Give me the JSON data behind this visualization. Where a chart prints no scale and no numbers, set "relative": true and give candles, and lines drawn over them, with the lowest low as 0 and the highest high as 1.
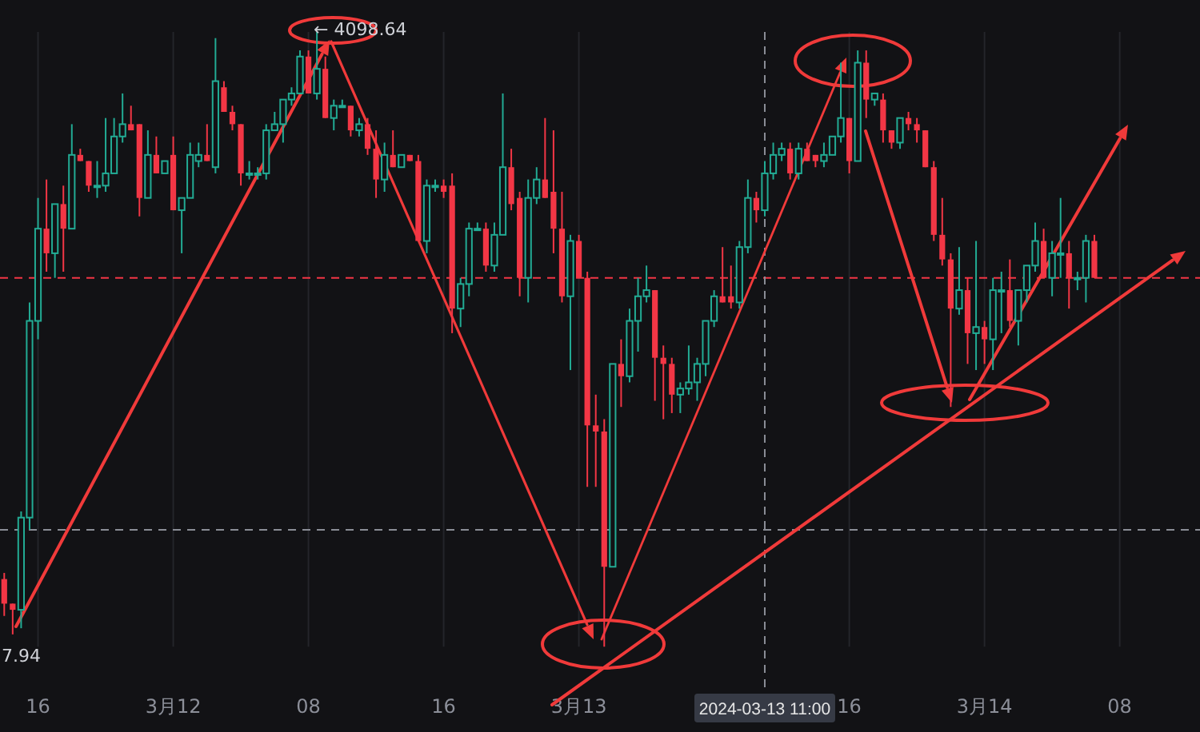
{
  "chart_data": {
    "type": "candlestick",
    "relative": true,
    "grid": "x",
    "xlim": [
      "2024-03-11T13:45",
      "2024-03-14T12:45"
    ],
    "xticks": [
      {
        "value": "2024-03-11T16:00",
        "label": "16"
      },
      {
        "value": "2024-03-12T00:00",
        "label": "3月12"
      },
      {
        "value": "2024-03-12T08:00",
        "label": "08"
      },
      {
        "value": "2024-03-12T16:00",
        "label": "16"
      },
      {
        "value": "2024-03-13T00:00",
        "label": "3月13"
      },
      {
        "value": "2024-03-13T16:00",
        "label": "16"
      },
      {
        "value": "2024-03-14T00:00",
        "label": "3月14"
      },
      {
        "value": "2024-03-14T08:00",
        "label": "08"
      }
    ],
    "x": [
      "2024-03-11T14:00",
      "2024-03-11T14:30",
      "2024-03-11T15:00",
      "2024-03-11T15:30",
      "2024-03-11T16:00",
      "2024-03-11T16:30",
      "2024-03-11T17:00",
      "2024-03-11T17:30",
      "2024-03-11T18:00",
      "2024-03-11T18:30",
      "2024-03-11T19:00",
      "2024-03-11T19:30",
      "2024-03-11T20:00",
      "2024-03-11T20:30",
      "2024-03-11T21:00",
      "2024-03-11T21:30",
      "2024-03-11T22:00",
      "2024-03-11T22:30",
      "2024-03-11T23:00",
      "2024-03-11T23:30",
      "2024-03-12T00:00",
      "2024-03-12T00:30",
      "2024-03-12T01:00",
      "2024-03-12T01:30",
      "2024-03-12T02:00",
      "2024-03-12T02:30",
      "2024-03-12T03:00",
      "2024-03-12T03:30",
      "2024-03-12T04:00",
      "2024-03-12T04:30",
      "2024-03-12T05:00",
      "2024-03-12T05:30",
      "2024-03-12T06:00",
      "2024-03-12T06:30",
      "2024-03-12T07:00",
      "2024-03-12T07:30",
      "2024-03-12T08:00",
      "2024-03-12T08:30",
      "2024-03-12T09:00",
      "2024-03-12T09:30",
      "2024-03-12T10:00",
      "2024-03-12T10:30",
      "2024-03-12T11:00",
      "2024-03-12T11:30",
      "2024-03-12T12:00",
      "2024-03-12T12:30",
      "2024-03-12T13:00",
      "2024-03-12T13:30",
      "2024-03-12T14:00",
      "2024-03-12T14:30",
      "2024-03-12T15:00",
      "2024-03-12T15:30",
      "2024-03-12T16:00",
      "2024-03-12T16:30",
      "2024-03-12T17:00",
      "2024-03-12T17:30",
      "2024-03-12T18:00",
      "2024-03-12T18:30",
      "2024-03-12T19:00",
      "2024-03-12T19:30",
      "2024-03-12T20:00",
      "2024-03-12T20:30",
      "2024-03-12T21:00",
      "2024-03-12T21:30",
      "2024-03-12T22:00",
      "2024-03-12T22:30",
      "2024-03-12T23:00",
      "2024-03-12T23:30",
      "2024-03-13T00:00",
      "2024-03-13T00:30",
      "2024-03-13T01:00",
      "2024-03-13T01:30",
      "2024-03-13T02:00",
      "2024-03-13T02:30",
      "2024-03-13T03:00",
      "2024-03-13T03:30",
      "2024-03-13T04:00",
      "2024-03-13T04:30",
      "2024-03-13T05:00",
      "2024-03-13T05:30",
      "2024-03-13T06:00",
      "2024-03-13T06:30",
      "2024-03-13T07:00",
      "2024-03-13T07:30",
      "2024-03-13T08:00",
      "2024-03-13T08:30",
      "2024-03-13T09:00",
      "2024-03-13T09:30",
      "2024-03-13T10:00",
      "2024-03-13T10:30",
      "2024-03-13T11:00",
      "2024-03-13T11:30",
      "2024-03-13T12:00",
      "2024-03-13T12:30",
      "2024-03-13T13:00",
      "2024-03-13T13:30",
      "2024-03-13T14:00",
      "2024-03-13T14:30",
      "2024-03-13T15:00",
      "2024-03-13T15:30",
      "2024-03-13T16:00",
      "2024-03-13T16:30",
      "2024-03-13T17:00",
      "2024-03-13T17:30",
      "2024-03-13T18:00",
      "2024-03-13T18:30",
      "2024-03-13T19:00",
      "2024-03-13T19:30",
      "2024-03-13T20:00",
      "2024-03-13T20:30",
      "2024-03-13T21:00",
      "2024-03-13T21:30",
      "2024-03-13T22:00",
      "2024-03-13T22:30",
      "2024-03-13T23:00",
      "2024-03-13T23:30",
      "2024-03-14T00:00",
      "2024-03-14T00:30",
      "2024-03-14T01:00",
      "2024-03-14T01:30",
      "2024-03-14T02:00",
      "2024-03-14T02:30",
      "2024-03-14T03:00",
      "2024-03-14T03:30",
      "2024-03-14T04:00",
      "2024-03-14T04:30",
      "2024-03-14T05:00",
      "2024-03-14T05:30",
      "2024-03-14T06:00",
      "2024-03-14T06:30"
    ],
    "ohlc": [
      [
        0.11,
        0.12,
        0.05,
        0.07
      ],
      [
        0.07,
        0.07,
        0.02,
        0.06
      ],
      [
        0.06,
        0.22,
        0.03,
        0.21
      ],
      [
        0.21,
        0.56,
        0.19,
        0.53
      ],
      [
        0.53,
        0.73,
        0.5,
        0.68
      ],
      [
        0.68,
        0.76,
        0.61,
        0.64
      ],
      [
        0.64,
        0.72,
        0.6,
        0.72
      ],
      [
        0.72,
        0.75,
        0.61,
        0.68
      ],
      [
        0.68,
        0.85,
        0.68,
        0.8
      ],
      [
        0.8,
        0.81,
        0.79,
        0.79
      ],
      [
        0.79,
        0.79,
        0.74,
        0.75
      ],
      [
        0.75,
        0.79,
        0.73,
        0.75
      ],
      [
        0.75,
        0.86,
        0.74,
        0.77
      ],
      [
        0.77,
        0.86,
        0.77,
        0.83
      ],
      [
        0.83,
        0.9,
        0.82,
        0.85
      ],
      [
        0.85,
        0.88,
        0.84,
        0.84
      ],
      [
        0.85,
        0.85,
        0.7,
        0.73
      ],
      [
        0.73,
        0.84,
        0.73,
        0.8
      ],
      [
        0.8,
        0.83,
        0.77,
        0.77
      ],
      [
        0.77,
        0.79,
        0.77,
        0.79
      ],
      [
        0.8,
        0.83,
        0.71,
        0.71
      ],
      [
        0.71,
        0.73,
        0.64,
        0.73
      ],
      [
        0.73,
        0.82,
        0.73,
        0.8
      ],
      [
        0.79,
        0.82,
        0.78,
        0.8
      ],
      [
        0.8,
        0.85,
        0.79,
        0.79
      ],
      [
        0.78,
        0.99,
        0.77,
        0.92
      ],
      [
        0.91,
        0.92,
        0.87,
        0.87
      ],
      [
        0.87,
        0.88,
        0.84,
        0.85
      ],
      [
        0.85,
        0.85,
        0.75,
        0.77
      ],
      [
        0.77,
        0.79,
        0.76,
        0.77
      ],
      [
        0.77,
        0.78,
        0.76,
        0.77
      ],
      [
        0.77,
        0.85,
        0.76,
        0.84
      ],
      [
        0.84,
        0.87,
        0.84,
        0.85
      ],
      [
        0.85,
        0.89,
        0.82,
        0.89
      ],
      [
        0.89,
        0.91,
        0.88,
        0.9
      ],
      [
        0.9,
        0.97,
        0.9,
        0.96
      ],
      [
        0.96,
        0.97,
        0.9,
        0.9
      ],
      [
        0.9,
        1.0,
        0.89,
        0.94
      ],
      [
        0.94,
        0.96,
        0.86,
        0.86
      ],
      [
        0.86,
        0.89,
        0.84,
        0.88
      ],
      [
        0.88,
        0.89,
        0.88,
        0.88
      ],
      [
        0.88,
        0.88,
        0.83,
        0.84
      ],
      [
        0.84,
        0.86,
        0.83,
        0.85
      ],
      [
        0.85,
        0.86,
        0.8,
        0.81
      ],
      [
        0.81,
        0.84,
        0.73,
        0.76
      ],
      [
        0.76,
        0.82,
        0.74,
        0.8
      ],
      [
        0.8,
        0.84,
        0.78,
        0.78
      ],
      [
        0.78,
        0.8,
        0.78,
        0.8
      ],
      [
        0.8,
        0.8,
        0.79,
        0.79
      ],
      [
        0.79,
        0.8,
        0.66,
        0.66
      ],
      [
        0.66,
        0.76,
        0.64,
        0.75
      ],
      [
        0.75,
        0.76,
        0.74,
        0.75
      ],
      [
        0.75,
        0.76,
        0.73,
        0.74
      ],
      [
        0.75,
        0.77,
        0.51,
        0.55
      ],
      [
        0.55,
        0.6,
        0.52,
        0.59
      ],
      [
        0.59,
        0.69,
        0.57,
        0.68
      ],
      [
        0.68,
        0.69,
        0.68,
        0.68
      ],
      [
        0.68,
        0.69,
        0.61,
        0.62
      ],
      [
        0.62,
        0.69,
        0.61,
        0.67
      ],
      [
        0.67,
        0.9,
        0.67,
        0.78
      ],
      [
        0.78,
        0.81,
        0.71,
        0.72
      ],
      [
        0.73,
        0.74,
        0.57,
        0.6
      ],
      [
        0.6,
        0.76,
        0.56,
        0.73
      ],
      [
        0.73,
        0.78,
        0.72,
        0.76
      ],
      [
        0.76,
        0.86,
        0.73,
        0.73
      ],
      [
        0.74,
        0.84,
        0.64,
        0.68
      ],
      [
        0.68,
        0.74,
        0.56,
        0.57
      ],
      [
        0.57,
        0.67,
        0.45,
        0.66
      ],
      [
        0.66,
        0.67,
        0.6,
        0.6
      ],
      [
        0.6,
        0.61,
        0.26,
        0.36
      ],
      [
        0.36,
        0.41,
        0.26,
        0.35
      ],
      [
        0.35,
        0.37,
        0.0,
        0.13
      ],
      [
        0.13,
        0.46,
        0.13,
        0.46
      ],
      [
        0.46,
        0.5,
        0.39,
        0.44
      ],
      [
        0.44,
        0.55,
        0.43,
        0.53
      ],
      [
        0.53,
        0.6,
        0.48,
        0.57
      ],
      [
        0.57,
        0.62,
        0.56,
        0.58
      ],
      [
        0.58,
        0.58,
        0.4,
        0.47
      ],
      [
        0.47,
        0.49,
        0.37,
        0.46
      ],
      [
        0.46,
        0.47,
        0.38,
        0.41
      ],
      [
        0.41,
        0.43,
        0.38,
        0.42
      ],
      [
        0.42,
        0.49,
        0.41,
        0.43
      ],
      [
        0.43,
        0.47,
        0.4,
        0.46
      ],
      [
        0.46,
        0.53,
        0.44,
        0.53
      ],
      [
        0.53,
        0.58,
        0.52,
        0.57
      ],
      [
        0.57,
        0.65,
        0.56,
        0.56
      ],
      [
        0.57,
        0.62,
        0.55,
        0.56
      ],
      [
        0.56,
        0.66,
        0.55,
        0.65
      ],
      [
        0.65,
        0.76,
        0.64,
        0.73
      ],
      [
        0.73,
        0.74,
        0.69,
        0.71
      ],
      [
        0.71,
        0.79,
        0.7,
        0.77
      ],
      [
        0.77,
        0.82,
        0.76,
        0.8
      ],
      [
        0.8,
        0.82,
        0.79,
        0.81
      ],
      [
        0.81,
        0.82,
        0.76,
        0.77
      ],
      [
        0.77,
        0.82,
        0.76,
        0.81
      ],
      [
        0.81,
        0.82,
        0.79,
        0.79
      ],
      [
        0.8,
        0.8,
        0.78,
        0.79
      ],
      [
        0.79,
        0.82,
        0.78,
        0.8
      ],
      [
        0.8,
        0.83,
        0.8,
        0.83
      ],
      [
        0.83,
        0.95,
        0.82,
        0.86
      ],
      [
        0.86,
        0.86,
        0.77,
        0.79
      ],
      [
        0.79,
        0.97,
        0.79,
        0.95
      ],
      [
        0.95,
        0.97,
        0.86,
        0.89
      ],
      [
        0.89,
        0.9,
        0.88,
        0.9
      ],
      [
        0.89,
        0.9,
        0.82,
        0.84
      ],
      [
        0.84,
        0.84,
        0.81,
        0.82
      ],
      [
        0.82,
        0.86,
        0.81,
        0.86
      ],
      [
        0.86,
        0.87,
        0.84,
        0.85
      ],
      [
        0.85,
        0.86,
        0.82,
        0.84
      ],
      [
        0.84,
        0.84,
        0.78,
        0.78
      ],
      [
        0.78,
        0.79,
        0.66,
        0.67
      ],
      [
        0.67,
        0.73,
        0.62,
        0.63
      ],
      [
        0.63,
        0.64,
        0.39,
        0.55
      ],
      [
        0.55,
        0.65,
        0.54,
        0.58
      ],
      [
        0.58,
        0.6,
        0.46,
        0.51
      ],
      [
        0.51,
        0.66,
        0.45,
        0.52
      ],
      [
        0.52,
        0.53,
        0.46,
        0.5
      ],
      [
        0.5,
        0.6,
        0.45,
        0.58
      ],
      [
        0.58,
        0.61,
        0.51,
        0.58
      ],
      [
        0.58,
        0.63,
        0.52,
        0.53
      ],
      [
        0.53,
        0.58,
        0.49,
        0.58
      ],
      [
        0.58,
        0.62,
        0.56,
        0.62
      ],
      [
        0.62,
        0.69,
        0.61,
        0.66
      ],
      [
        0.66,
        0.68,
        0.6,
        0.6
      ],
      [
        0.6,
        0.66,
        0.57,
        0.64
      ],
      [
        0.64,
        0.73,
        0.6,
        0.64
      ],
      [
        0.64,
        0.66,
        0.55,
        0.6
      ],
      [
        0.6,
        0.61,
        0.58,
        0.6
      ],
      [
        0.6,
        0.67,
        0.56,
        0.66
      ],
      [
        0.66,
        0.67,
        0.6,
        0.6
      ]
    ],
    "ref_lines": [
      {
        "axis": "y",
        "value": 0.6,
        "color": "#f23645",
        "line_style": "dashed"
      },
      {
        "axis": "y",
        "value": 0.19,
        "color": "#8a8d96",
        "line_style": "dashed"
      },
      {
        "axis": "x",
        "value": "2024-03-13T11:00",
        "label": "2024-03-13 11:00",
        "color": "#8a8d96",
        "line_style": "dashed"
      }
    ],
    "annotations": [
      "← 4098.64",
      "7.94"
    ]
  }
}
